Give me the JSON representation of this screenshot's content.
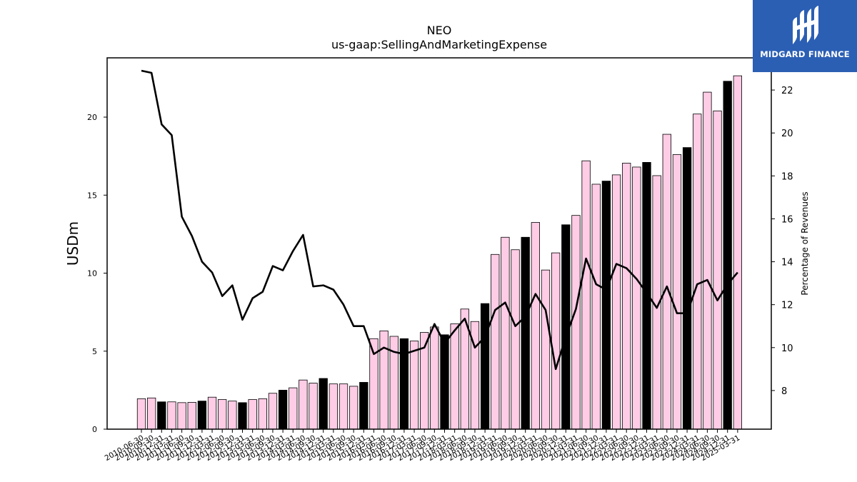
{
  "brand": {
    "name": "MIDGARD FINANCE",
    "color": "#2b5fb4",
    "icon": "midgard-logo-icon"
  },
  "chart_data": {
    "type": "bar",
    "title": "NEO",
    "subtitle": "us-gaap:SellingAndMarketingExpense",
    "ylabel": "USDm",
    "y2label": "Percentage of Revenues",
    "ylim": [
      0,
      23.8
    ],
    "y2lim": [
      6.2,
      23.5
    ],
    "yticks": [
      0,
      5,
      10,
      15,
      20
    ],
    "y2ticks": [
      8,
      10,
      12,
      14,
      16,
      18,
      20,
      22
    ],
    "grid": false,
    "colors": {
      "quarter_bar": "#ffcce6",
      "annual_bar": "#000000",
      "line": "#000000"
    },
    "categories": [
      "2010-06-30",
      "2010-09-30",
      "2010-12-31",
      "2011-03-31",
      "2011-06-30",
      "2011-09-30",
      "2011-12-31",
      "2012-03-31",
      "2012-06-30",
      "2012-09-30",
      "2012-12-31",
      "2013-03-31",
      "2013-06-30",
      "2013-09-30",
      "2013-12-31",
      "2014-03-31",
      "2014-06-30",
      "2014-09-30",
      "2014-12-31",
      "2015-03-31",
      "2015-06-30",
      "2015-09-30",
      "2015-12-31",
      "2016-03-31",
      "2016-06-30",
      "2016-09-30",
      "2016-12-31",
      "2017-03-31",
      "2017-06-30",
      "2017-09-30",
      "2017-12-31",
      "2018-03-31",
      "2018-06-30",
      "2018-09-30",
      "2018-12-31",
      "2019-03-31",
      "2019-06-30",
      "2019-09-30",
      "2019-12-31",
      "2020-03-31",
      "2020-06-30",
      "2020-09-30",
      "2020-12-31",
      "2021-03-31",
      "2021-06-30",
      "2021-09-30",
      "2021-12-31",
      "2022-03-31",
      "2022-06-30",
      "2022-09-30",
      "2022-12-31",
      "2023-03-31",
      "2023-06-30",
      "2023-09-30",
      "2023-12-31",
      "2024-03-31",
      "2024-06-30",
      "2024-09-30",
      "2024-12-31",
      "2025-03-31"
    ],
    "series": [
      {
        "kind": "bar",
        "values": [
          1.95,
          2.0,
          1.75,
          1.75,
          1.7,
          1.72,
          1.8,
          2.05,
          1.9,
          1.8,
          1.7,
          1.9,
          1.95,
          2.3,
          2.5,
          2.65,
          3.15,
          2.95,
          3.25,
          2.9,
          2.9,
          2.75,
          3.0,
          5.8,
          6.3,
          5.95,
          5.8,
          5.65,
          6.2,
          6.55,
          6.05,
          6.75,
          7.7,
          6.9,
          8.05,
          11.2,
          12.3,
          11.5,
          12.3,
          13.25,
          10.2,
          11.3,
          13.1,
          13.7,
          17.2,
          15.7,
          15.9,
          16.3,
          17.05,
          16.8,
          17.1,
          16.25,
          18.9,
          17.6,
          18.05,
          20.2,
          21.6,
          20.4,
          22.3,
          22.65
        ],
        "annual": [
          false,
          false,
          true,
          false,
          false,
          false,
          true,
          false,
          false,
          false,
          true,
          false,
          false,
          false,
          true,
          false,
          false,
          false,
          true,
          false,
          false,
          false,
          true,
          false,
          false,
          false,
          true,
          false,
          false,
          false,
          true,
          false,
          false,
          false,
          true,
          false,
          false,
          false,
          true,
          false,
          false,
          false,
          true,
          false,
          false,
          false,
          true,
          false,
          false,
          false,
          true,
          false,
          false,
          false,
          true,
          false,
          false,
          false,
          true,
          false
        ]
      },
      {
        "kind": "line",
        "axis": "right",
        "values": [
          22.9,
          22.8,
          20.4,
          19.9,
          16.1,
          15.2,
          14.0,
          13.5,
          12.4,
          12.9,
          11.3,
          12.3,
          12.6,
          13.8,
          13.6,
          14.5,
          15.25,
          12.85,
          12.9,
          12.7,
          12.0,
          11.0,
          11.0,
          9.7,
          10.0,
          9.8,
          9.7,
          9.85,
          10.0,
          11.1,
          10.2,
          10.8,
          11.35,
          10.0,
          10.5,
          11.75,
          12.1,
          11.0,
          11.45,
          12.5,
          11.75,
          9.0,
          10.5,
          11.8,
          14.15,
          12.95,
          12.7,
          13.9,
          13.7,
          13.2,
          12.55,
          11.85,
          12.85,
          11.6,
          11.6,
          12.95,
          13.15,
          12.2,
          12.95,
          13.5
        ]
      }
    ]
  }
}
